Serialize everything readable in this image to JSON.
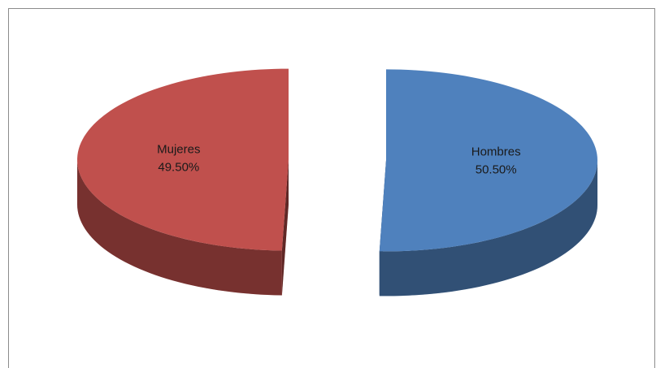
{
  "chart_data": {
    "type": "pie3d",
    "categories": [
      "Hombres",
      "Mujeres"
    ],
    "values": [
      50.5,
      49.5
    ],
    "value_labels": [
      "50.50%",
      "49.50%"
    ],
    "colors": [
      "#4f81bd",
      "#c0504d"
    ]
  }
}
